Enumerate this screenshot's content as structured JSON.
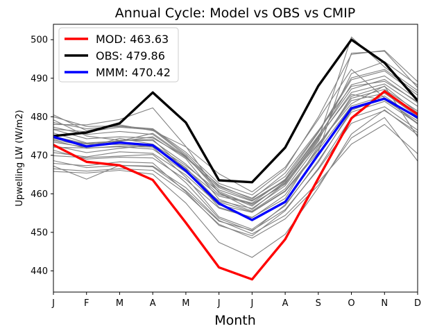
{
  "chart_data": {
    "type": "line",
    "title": "Annual Cycle: Model vs OBS vs CMIP",
    "xlabel": "Month",
    "ylabel": "Upwelling LW (W/m2)",
    "categories": [
      "J",
      "F",
      "M",
      "A",
      "M",
      "J",
      "J",
      "A",
      "S",
      "O",
      "N",
      "D"
    ],
    "ylim": [
      434.5,
      504
    ],
    "yticks": [
      440,
      450,
      460,
      470,
      480,
      490,
      500
    ],
    "grid": false,
    "legend_position": "upper left",
    "legend": [
      "MOD: 463.63",
      "OBS: 479.86",
      "MMM: 470.42"
    ],
    "series": [
      {
        "name": "MOD: 463.63",
        "color": "#ff0000",
        "role": "main",
        "values": [
          472.7,
          468.3,
          467.4,
          463.6,
          452.5,
          440.9,
          437.8,
          448.2,
          464.0,
          479.6,
          486.6,
          480.6
        ]
      },
      {
        "name": "OBS: 479.86",
        "color": "#000000",
        "role": "main",
        "values": [
          475.0,
          475.9,
          478.3,
          486.3,
          478.5,
          463.5,
          463.0,
          472.0,
          488.0,
          500.0,
          494.0,
          484.2
        ]
      },
      {
        "name": "MMM: 470.42",
        "color": "#0000ff",
        "role": "main",
        "values": [
          474.8,
          472.3,
          473.3,
          472.6,
          466.0,
          457.5,
          453.2,
          457.9,
          470.2,
          482.2,
          484.7,
          479.8
        ]
      }
    ],
    "ensemble": {
      "name": "CMIP",
      "color": "#808080",
      "members": [
        [
          480.5,
          476.4,
          477.9,
          476.4,
          472.2,
          465.2,
          460.5,
          466.9,
          479.3,
          492.3,
          484.9,
          478.1
        ],
        [
          479.2,
          475.0,
          473.9,
          474.1,
          466.3,
          456.5,
          453.9,
          458.8,
          472.4,
          484.8,
          487.1,
          481.5
        ],
        [
          476.7,
          474.3,
          474.8,
          474.5,
          469.6,
          462.2,
          458.6,
          465.4,
          476.4,
          487.9,
          489.2,
          483.9
        ],
        [
          469.9,
          469.4,
          469.8,
          470.2,
          462.9,
          453.6,
          450.3,
          457.2,
          468.2,
          481.7,
          484.8,
          478.3
        ],
        [
          467.9,
          467.3,
          468.3,
          468.0,
          460.5,
          451.8,
          449.1,
          455.6,
          466.6,
          479.8,
          482.6,
          476.5
        ],
        [
          465.8,
          465.4,
          466.1,
          465.1,
          457.6,
          447.4,
          443.5,
          449.5,
          461.6,
          475.5,
          481.8,
          475.3
        ],
        [
          474.9,
          473.0,
          473.6,
          474.8,
          469.1,
          458.6,
          455.5,
          461.3,
          472.8,
          484.2,
          486.1,
          480.1
        ],
        [
          478.0,
          477.9,
          479.3,
          482.3,
          472.3,
          460.2,
          455.9,
          462.7,
          474.4,
          486.3,
          488.5,
          482.7
        ],
        [
          472.5,
          470.7,
          471.8,
          472.6,
          466.8,
          457.9,
          455.3,
          460.8,
          471.4,
          482.8,
          485.4,
          479.4
        ],
        [
          476.8,
          476.1,
          477.3,
          476.6,
          469.9,
          460.3,
          456.8,
          463.2,
          474.8,
          488.3,
          490.6,
          484.5
        ],
        [
          473.8,
          471.8,
          472.4,
          472.1,
          464.3,
          454.0,
          450.8,
          456.9,
          468.6,
          481.2,
          484.0,
          478.2
        ],
        [
          471.3,
          469.0,
          469.5,
          469.3,
          463.7,
          456.3,
          453.8,
          459.7,
          471.8,
          485.3,
          487.9,
          481.0
        ],
        [
          474.0,
          472.5,
          473.9,
          473.8,
          467.7,
          459.8,
          457.6,
          463.8,
          475.9,
          489.6,
          491.9,
          485.6
        ],
        [
          478.5,
          476.9,
          477.5,
          476.8,
          470.3,
          461.9,
          458.9,
          464.5,
          476.1,
          490.1,
          492.3,
          486.2
        ],
        [
          467.2,
          463.8,
          467.4,
          467.0,
          460.8,
          452.9,
          450.5,
          455.9,
          466.3,
          478.3,
          481.6,
          475.9
        ],
        [
          475.8,
          473.2,
          473.7,
          475.7,
          469.7,
          461.0,
          458.1,
          463.4,
          475.1,
          487.2,
          489.7,
          483.6
        ],
        [
          472.1,
          471.9,
          472.2,
          471.6,
          465.6,
          458.2,
          456.2,
          462.1,
          473.6,
          491.2,
          494.3,
          488.2
        ],
        [
          480.0,
          477.5,
          477.6,
          476.9,
          470.8,
          462.7,
          459.7,
          466.4,
          479.9,
          496.2,
          497.2,
          489.1
        ],
        [
          474.3,
          472.9,
          472.8,
          472.3,
          466.5,
          459.4,
          457.4,
          462.5,
          474.0,
          500.7,
          492.9,
          486.8
        ],
        [
          470.7,
          469.6,
          470.9,
          470.5,
          464.9,
          457.1,
          455.2,
          460.6,
          470.8,
          496.5,
          497.0,
          487.6
        ],
        [
          466.5,
          465.9,
          466.5,
          466.1,
          460.1,
          452.1,
          448.5,
          453.5,
          462.2,
          474.5,
          479.8,
          468.5
        ],
        [
          468.6,
          466.8,
          467.4,
          467.2,
          461.6,
          453.1,
          449.6,
          454.4,
          463.0,
          472.9,
          478.0,
          470.4
        ],
        [
          477.3,
          475.4,
          476.2,
          475.4,
          469.4,
          461.6,
          458.3,
          463.6,
          474.6,
          485.8,
          484.4,
          478.9
        ],
        [
          473.4,
          472.1,
          474.4,
          472.9,
          467.3,
          460.6,
          457.1,
          462.9,
          473.0,
          483.4,
          488.0,
          474.8
        ]
      ]
    }
  }
}
